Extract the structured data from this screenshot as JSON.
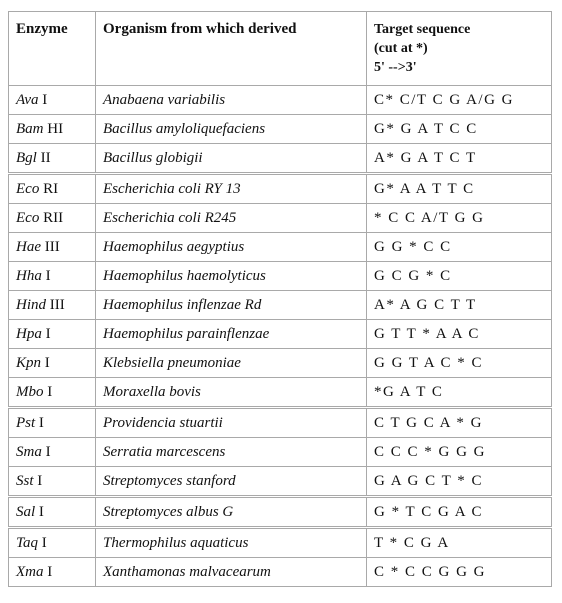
{
  "table": {
    "headers": {
      "enzyme": "Enzyme",
      "organism": "Organism from which derived",
      "target_line1": "Target sequence",
      "target_line2": "(cut at *)",
      "target_line3": "5' -->3'"
    },
    "rows": [
      {
        "genus": "Ava",
        "numeral": " I",
        "organism": "Anabaena variabilis",
        "sequence": "C* C/T C G A/G G"
      },
      {
        "genus": "Bam",
        "numeral": " HI",
        "organism": "Bacillus amyloliquefaciens",
        "sequence": "G* G A T C C"
      },
      {
        "genus": "Bgl",
        "numeral": " II",
        "organism": "Bacillus globigii",
        "sequence": "A* G A T C T"
      },
      {
        "genus": "Eco",
        "numeral": " RI",
        "organism": "Escherichia coli RY 13",
        "sequence": "G* A A T T C"
      },
      {
        "genus": "Eco",
        "numeral": " RII",
        "organism": "Escherichia coli R245",
        "sequence": "* C C A/T G G"
      },
      {
        "genus": "Hae",
        "numeral": " III",
        "organism": "Haemophilus aegyptius",
        "sequence": "G G * C C"
      },
      {
        "genus": "Hha",
        "numeral": " I",
        "organism": "Haemophilus haemolyticus",
        "sequence": "G C G * C"
      },
      {
        "genus": "Hind",
        "numeral": " III",
        "organism": "Haemophilus inflenzae Rd",
        "sequence": "A* A G C T T"
      },
      {
        "genus": "Hpa",
        "numeral": " I",
        "organism": "Haemophilus parainflenzae",
        "sequence": "G T T * A A C"
      },
      {
        "genus": "Kpn",
        "numeral": " I",
        "organism": "Klebsiella pneumoniae",
        "sequence": "G G T A C * C"
      },
      {
        "genus": "Mbo",
        "numeral": " I",
        "organism": "Moraxella bovis",
        "sequence": "*G A T C"
      },
      {
        "genus": "Pst",
        "numeral": " I",
        "organism": "Providencia stuartii",
        "sequence": "C T G C A * G"
      },
      {
        "genus": "Sma",
        "numeral": " I",
        "organism": "Serratia marcescens",
        "sequence": "C C C * G G G"
      },
      {
        "genus": "Sst",
        "numeral": " I",
        "organism": "Streptomyces stanford",
        "sequence": "G A G C T * C"
      },
      {
        "genus": "Sal",
        "numeral": " I",
        "organism": "Streptomyces albus G",
        "sequence": "G * T C G A C"
      },
      {
        "genus": "Taq",
        "numeral": " I",
        "organism": "Thermophilus aquaticus",
        "sequence": "T * C G A"
      },
      {
        "genus": "Xma",
        "numeral": " I",
        "organism": "Xanthamonas malvacearum",
        "sequence": "C * C C G G G"
      }
    ]
  }
}
